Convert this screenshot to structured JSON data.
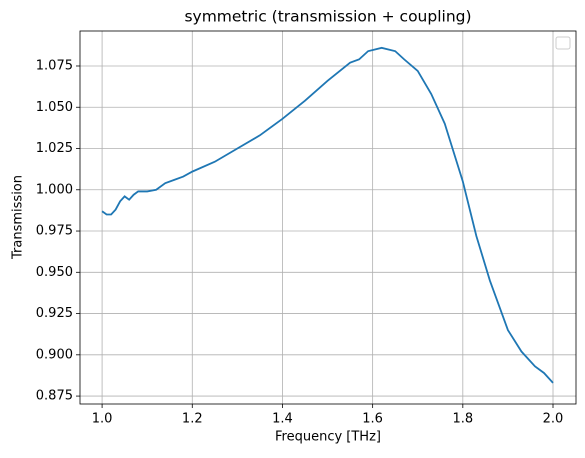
{
  "chart_data": {
    "type": "line",
    "title": "symmetric (transmission + coupling)",
    "x_label": "Frequency [THz]",
    "y_label": "Transmission",
    "x": [
      1.0,
      1.01,
      1.02,
      1.03,
      1.04,
      1.05,
      1.06,
      1.07,
      1.08,
      1.1,
      1.12,
      1.14,
      1.16,
      1.18,
      1.2,
      1.25,
      1.3,
      1.35,
      1.4,
      1.45,
      1.5,
      1.55,
      1.57,
      1.59,
      1.62,
      1.65,
      1.67,
      1.7,
      1.73,
      1.76,
      1.8,
      1.83,
      1.86,
      1.88,
      1.9,
      1.93,
      1.96,
      1.98,
      2.0
    ],
    "series": [
      {
        "color": "#1f77b4",
        "values": [
          0.987,
          0.985,
          0.985,
          0.988,
          0.993,
          0.996,
          0.994,
          0.997,
          0.999,
          0.999,
          1.0,
          1.004,
          1.006,
          1.008,
          1.011,
          1.017,
          1.025,
          1.033,
          1.043,
          1.054,
          1.066,
          1.077,
          1.079,
          1.084,
          1.086,
          1.084,
          1.079,
          1.072,
          1.058,
          1.04,
          1.005,
          0.972,
          0.945,
          0.93,
          0.915,
          0.902,
          0.893,
          0.889,
          0.883
        ]
      }
    ],
    "xlim": [
      0.951,
      2.051
    ],
    "xticks": [
      {
        "value": 1.0,
        "label": "1.0"
      },
      {
        "value": 1.2,
        "label": "1.2"
      },
      {
        "value": 1.4,
        "label": "1.4"
      },
      {
        "value": 1.6,
        "label": "1.6"
      },
      {
        "value": 1.8,
        "label": "1.8"
      },
      {
        "value": 2.0,
        "label": "2.0"
      }
    ],
    "ylim": [
      0.8702,
      1.0962
    ],
    "yticks": [
      0.875,
      {
        "value": 0.9,
        "label": "0.900"
      },
      0.925,
      {
        "value": 0.95,
        "label": "0.950"
      },
      0.975,
      {
        "value": 1.0,
        "label": "1.000"
      },
      1.025,
      {
        "value": 1.05,
        "label": "1.050"
      },
      1.075
    ],
    "grid": true
  }
}
